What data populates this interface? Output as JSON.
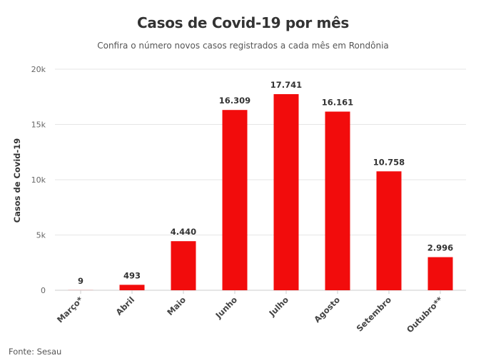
{
  "title": "Casos de Covid-19 por mês",
  "subtitle": "Confira o número novos casos registrados a cada mês em Rondônia",
  "source": "Fonte: Sesau",
  "colors": {
    "bar": "#f20c0c",
    "grid": "#e6e6e6",
    "axis": "#cccccc"
  },
  "chart_data": {
    "type": "bar",
    "title": "Casos de Covid-19 por mês",
    "subtitle": "Confira o número novos casos registrados a cada mês em Rondônia",
    "xlabel": "",
    "ylabel": "Casos de Covid-19",
    "ylim": [
      0,
      20000
    ],
    "yticks": [
      0,
      5000,
      10000,
      15000,
      20000
    ],
    "ytick_labels": [
      "0",
      "5k",
      "10k",
      "15k",
      "20k"
    ],
    "grid": true,
    "categories": [
      "Março*",
      "Abril",
      "Maio",
      "Junho",
      "Julho",
      "Agosto",
      "Setembro",
      "Outubro**"
    ],
    "values": [
      9,
      493,
      4440,
      16309,
      17741,
      16161,
      10758,
      2996
    ],
    "data_labels": [
      "9",
      "493",
      "4.440",
      "16.309",
      "17.741",
      "16.161",
      "10.758",
      "2.996"
    ]
  }
}
